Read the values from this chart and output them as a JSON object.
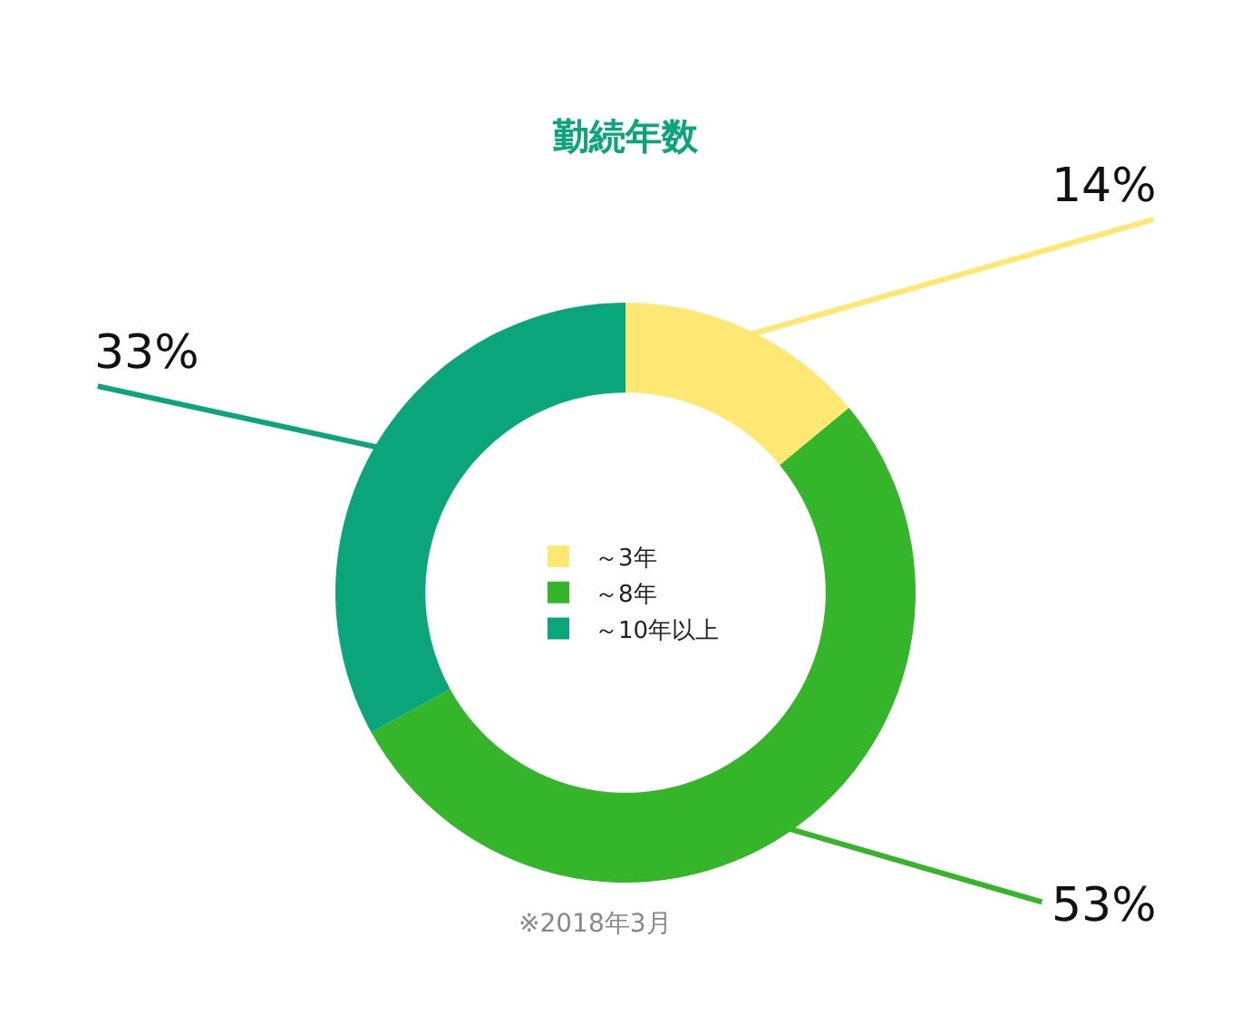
{
  "chart_data": {
    "type": "donut",
    "title": "勤続年数",
    "categories": [
      "～3年",
      "～8年",
      "～10年以上"
    ],
    "values": [
      14,
      53,
      33
    ],
    "colors": [
      "#ffe773",
      "#35b52a",
      "#0aa57a"
    ],
    "value_labels": [
      "14%",
      "53%",
      "33%"
    ],
    "legend": "center",
    "annotations": [
      "※2018年3月"
    ]
  }
}
